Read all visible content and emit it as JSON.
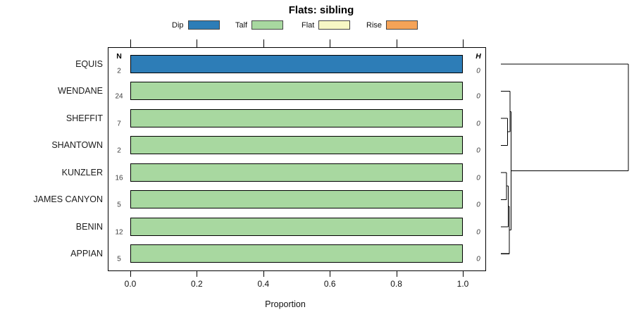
{
  "title": "Flats: sibling",
  "legend": {
    "items": [
      {
        "label": "Dip",
        "color": "#2d7db7"
      },
      {
        "label": "Talf",
        "color": "#a8d8a0"
      },
      {
        "label": "Flat",
        "color": "#f7f7c5"
      },
      {
        "label": "Rise",
        "color": "#f5a358"
      }
    ]
  },
  "columns": {
    "n_header": "N",
    "h_header": "H"
  },
  "axis": {
    "label": "Proportion",
    "tick_labels": [
      "0.0",
      "0.2",
      "0.4",
      "0.6",
      "0.8",
      "1.0"
    ],
    "tick_values": [
      0,
      0.2,
      0.4,
      0.6,
      0.8,
      1.0
    ]
  },
  "chart_data": {
    "type": "bar",
    "orientation": "horizontal-stacked",
    "title": "Flats: sibling",
    "xlabel": "Proportion",
    "xlim": [
      0,
      1
    ],
    "legend_position": "top",
    "grid": false,
    "categories": [
      "EQUIS",
      "WENDANE",
      "SHEFFIT",
      "SHANTOWN",
      "KUNZLER",
      "JAMES CANYON",
      "BENIN",
      "APPIAN"
    ],
    "series": [
      {
        "name": "Dip",
        "color": "#2d7db7",
        "values": [
          1,
          0,
          0,
          0,
          0,
          0,
          0,
          0
        ]
      },
      {
        "name": "Talf",
        "color": "#a8d8a0",
        "values": [
          0,
          1,
          1,
          1,
          1,
          1,
          1,
          1
        ]
      },
      {
        "name": "Flat",
        "color": "#f7f7c5",
        "values": [
          0,
          0,
          0,
          0,
          0,
          0,
          0,
          0
        ]
      },
      {
        "name": "Rise",
        "color": "#f5a358",
        "values": [
          0,
          0,
          0,
          0,
          0,
          0,
          0,
          0
        ]
      }
    ],
    "n_values": [
      "2",
      "24",
      "7",
      "2",
      "16",
      "5",
      "12",
      "5"
    ],
    "h_values": [
      "0",
      "0",
      "0",
      "0",
      "0",
      "0",
      "0",
      "0"
    ],
    "dendrogram": {
      "leaves": [
        "EQUIS",
        "WENDANE",
        "SHEFFIT",
        "SHANTOWN",
        "KUNZLER",
        "JAMES CANYON",
        "BENIN",
        "APPIAN"
      ],
      "merges": [
        {
          "a": "SHEFFIT",
          "b": "SHANTOWN",
          "height": 0.052
        },
        {
          "a": "WENDANE",
          "b": "@0",
          "height": 0.072
        },
        {
          "a": "KUNZLER",
          "b": "JAMES CANYON",
          "height": 0.044
        },
        {
          "a": "@2",
          "b": "BENIN",
          "height": 0.057
        },
        {
          "a": "@3",
          "b": "APPIAN",
          "height": 0.066
        },
        {
          "a": "@1",
          "b": "@4",
          "height": 0.081
        },
        {
          "a": "EQUIS",
          "b": "@5",
          "height": 1.0
        }
      ]
    }
  }
}
